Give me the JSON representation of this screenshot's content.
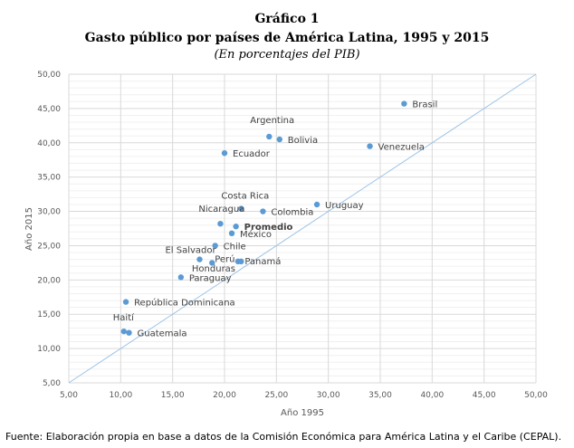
{
  "chart_data": {
    "type": "scatter",
    "title": "Gráfico 1",
    "subtitle": "Gasto público por países de América Latina, 1995 y 2015",
    "unit_note": "(En porcentajes del PIB)",
    "xlabel": "Año 1995",
    "ylabel": "Año 2015",
    "xlim": [
      5,
      50
    ],
    "ylim": [
      5,
      50
    ],
    "xticks": [
      "5,00",
      "10,00",
      "15,00",
      "20,00",
      "25,00",
      "30,00",
      "35,00",
      "40,00",
      "45,00",
      "50,00"
    ],
    "yticks": [
      "5,00",
      "10,00",
      "15,00",
      "20,00",
      "25,00",
      "30,00",
      "35,00",
      "40,00",
      "45,00",
      "50,00"
    ],
    "grid": true,
    "reference_line": "y = x",
    "point_color": "#5b9bd5",
    "line_color": "#9dc3e6",
    "points": [
      {
        "label": "Brasil",
        "x": 37.3,
        "y": 45.7
      },
      {
        "label": "Argentina",
        "x": 24.3,
        "y": 40.9
      },
      {
        "label": "Bolivia",
        "x": 25.3,
        "y": 40.5
      },
      {
        "label": "Venezuela",
        "x": 34.0,
        "y": 39.5
      },
      {
        "label": "Ecuador",
        "x": 20.0,
        "y": 38.5
      },
      {
        "label": "Uruguay",
        "x": 28.9,
        "y": 31.0
      },
      {
        "label": "Costa Rica",
        "x": 21.6,
        "y": 30.4
      },
      {
        "label": "Colombia",
        "x": 23.7,
        "y": 30.0
      },
      {
        "label": "Nicaragua",
        "x": 19.6,
        "y": 28.2
      },
      {
        "label": "Promedio",
        "x": 21.1,
        "y": 27.8
      },
      {
        "label": "México",
        "x": 20.7,
        "y": 26.8
      },
      {
        "label": "Chile",
        "x": 19.1,
        "y": 25.0
      },
      {
        "label": "El Salvador",
        "x": 17.6,
        "y": 23.0
      },
      {
        "label": "Perú",
        "x": 18.8,
        "y": 22.5
      },
      {
        "label": "Honduras",
        "x": 21.3,
        "y": 22.7
      },
      {
        "label": "Panamá",
        "x": 21.6,
        "y": 22.7
      },
      {
        "label": "Paraguay",
        "x": 15.8,
        "y": 20.4
      },
      {
        "label": "República Dominicana",
        "x": 10.5,
        "y": 16.8
      },
      {
        "label": "Haití",
        "x": 10.3,
        "y": 12.5
      },
      {
        "label": "Guatemala",
        "x": 10.8,
        "y": 12.3
      }
    ]
  },
  "footer": "Fuente: Elaboración propia en base a datos de la Comisión Económica para América Latina y el Caribe (CEPAL)."
}
